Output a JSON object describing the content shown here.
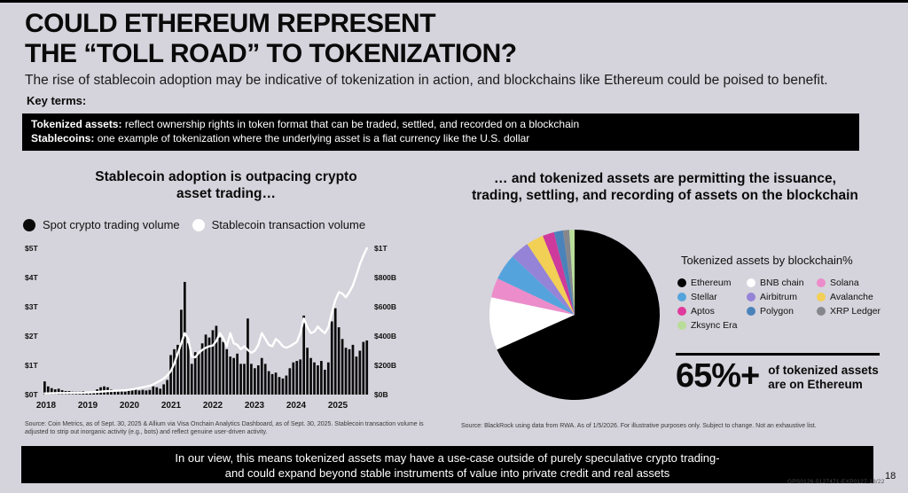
{
  "page": {
    "page_number": "18",
    "footer_code": "GPS0126-5127471-EXP0127-18/22",
    "background_color": "#d5d3db",
    "banner_color": "#000000"
  },
  "header": {
    "title_line1": "COULD ETHEREUM REPRESENT",
    "title_line2": "THE “TOLL ROAD” TO TOKENIZATION?",
    "subtitle": "The rise of stablecoin adoption may be indicative of tokenization in action, and blockchains like Ethereum could be poised to benefit.",
    "key_terms_label": "Key terms:",
    "definitions": [
      {
        "term": "Tokenized assets:",
        "text": " reflect ownership rights in token format that can be traded, settled, and recorded on a blockchain"
      },
      {
        "term": "Stablecoins:",
        "text": " one example of tokenization where the underlying asset is a fiat currency like the U.S. dollar"
      }
    ]
  },
  "chart_data": [
    {
      "type": "bar+line",
      "title_line1": "Stablecoin adoption is outpacing crypto",
      "title_line2": "asset trading…",
      "legend": [
        {
          "label": "Spot crypto trading volume",
          "color": "#0a0a0a"
        },
        {
          "label": "Stablecoin transaction volume",
          "color": "#ffffff"
        }
      ],
      "x_tick_labels": [
        "2018",
        "2019",
        "2020",
        "2021",
        "2022",
        "2023",
        "2024",
        "2025"
      ],
      "left_axis": {
        "label_units": "spot crypto trading volume, $ trillions",
        "ticks": [
          "$5T",
          "$4T",
          "$3T",
          "$2T",
          "$1T",
          "$0T"
        ],
        "max_T": 5
      },
      "right_axis": {
        "label_units": "stablecoin transaction volume, $ billions",
        "ticks": [
          "$1T",
          "$800B",
          "$600B",
          "$400B",
          "$200B",
          "$0B"
        ],
        "max_B": 1000
      },
      "x_start": "Jan 2018",
      "x_end": "Sep 2025",
      "bars_monthly_T": [
        0.45,
        0.28,
        0.22,
        0.18,
        0.2,
        0.15,
        0.12,
        0.12,
        0.1,
        0.1,
        0.1,
        0.12,
        0.08,
        0.08,
        0.1,
        0.18,
        0.25,
        0.28,
        0.25,
        0.18,
        0.14,
        0.12,
        0.14,
        0.1,
        0.15,
        0.18,
        0.22,
        0.14,
        0.16,
        0.14,
        0.16,
        0.28,
        0.25,
        0.2,
        0.35,
        0.5,
        1.35,
        1.55,
        1.7,
        2.9,
        3.85,
        1.75,
        1.05,
        1.45,
        1.4,
        1.75,
        2.05,
        1.95,
        2.2,
        2.35,
        1.95,
        1.8,
        1.55,
        1.3,
        1.25,
        1.4,
        1.05,
        1.05,
        2.6,
        1.05,
        0.9,
        1.0,
        1.25,
        1.05,
        0.8,
        0.7,
        0.75,
        0.6,
        0.55,
        0.65,
        0.9,
        1.1,
        1.15,
        1.2,
        2.7,
        1.6,
        1.25,
        1.1,
        1.0,
        1.15,
        0.85,
        1.1,
        2.5,
        2.95,
        2.3,
        1.9,
        1.6,
        1.55,
        1.7,
        1.3,
        1.5,
        1.8,
        1.85
      ],
      "line_monthly_B": [
        8,
        8,
        9,
        9,
        10,
        10,
        10,
        11,
        11,
        12,
        12,
        13,
        14,
        15,
        16,
        18,
        20,
        22,
        24,
        25,
        26,
        27,
        28,
        30,
        32,
        35,
        40,
        45,
        50,
        55,
        60,
        70,
        82,
        95,
        110,
        130,
        160,
        210,
        280,
        350,
        420,
        380,
        260,
        255,
        285,
        305,
        320,
        330,
        335,
        365,
        420,
        385,
        330,
        420,
        350,
        340,
        310,
        330,
        305,
        285,
        300,
        340,
        420,
        380,
        340,
        330,
        380,
        360,
        330,
        320,
        330,
        345,
        360,
        420,
        520,
        460,
        420,
        430,
        465,
        440,
        420,
        460,
        560,
        645,
        700,
        690,
        665,
        700,
        745,
        815,
        890,
        950,
        1000
      ],
      "source": "Source: Coin Metrics, as of Sept. 30, 2025 & Allium via Visa Onchain Analytics Dashboard, as of Sept. 30, 2025. Stablecoin transaction volume is adjusted to strip out inorganic activity (e.g., bots) and reflect genuine user-driven activity."
    },
    {
      "type": "pie",
      "title_line1": "… and  tokenized assets are permitting the issuance,",
      "title_line2": "trading, settling, and recording of assets on the blockchain",
      "label": "Tokenized assets by blockchain%",
      "slices": [
        {
          "name": "Ethereum",
          "value": 68.3,
          "color": "#000000"
        },
        {
          "name": "BNB chain",
          "value": 10.0,
          "color": "#ffffff"
        },
        {
          "name": "Solana",
          "value": 3.7,
          "color": "#ec8cca"
        },
        {
          "name": "Stellar",
          "value": 5.0,
          "color": "#55a3dc"
        },
        {
          "name": "Airbitrum",
          "value": 3.6,
          "color": "#9583d8"
        },
        {
          "name": "Avalanche",
          "value": 3.3,
          "color": "#f2cf55"
        },
        {
          "name": "Aptos",
          "value": 2.2,
          "color": "#cd3a9c"
        },
        {
          "name": "Polygon",
          "value": 1.7,
          "color": "#4a82ba"
        },
        {
          "name": "XRP Ledger",
          "value": 1.2,
          "color": "#85878c"
        },
        {
          "name": "Zksync Era",
          "value": 1.0,
          "color": "#b8dd99"
        }
      ],
      "legend_columns": [
        [
          {
            "label": "Ethereum",
            "color": "#000000"
          },
          {
            "label": "Stellar",
            "color": "#55a3dc"
          },
          {
            "label": "Aptos",
            "color": "#e0399d"
          },
          {
            "label": "Zksync Era",
            "color": "#b8dd99"
          }
        ],
        [
          {
            "label": "BNB chain",
            "color": "#ffffff"
          },
          {
            "label": "Airbitrum",
            "color": "#9583d8"
          },
          {
            "label": "Polygon",
            "color": "#4a82ba"
          }
        ],
        [
          {
            "label": "Solana",
            "color": "#ec8cca"
          },
          {
            "label": "Avalanche",
            "color": "#f2cf55"
          },
          {
            "label": "XRP Ledger",
            "color": "#85878c"
          }
        ]
      ],
      "callout": {
        "stat": "65%+",
        "text_line1": "of tokenized assets",
        "text_line2": "are on Ethereum"
      },
      "source": "Source: BlackRock using data from RWA. As of 1/5/2026. For illustrative purposes only. Subject to change. Not an exhaustive list."
    }
  ],
  "footer_banner": {
    "line1": "In our view, this means tokenized assets may have a use-case outside of purely speculative crypto trading-",
    "line2": "and could expand beyond stable instruments of value into private credit and real assets"
  }
}
